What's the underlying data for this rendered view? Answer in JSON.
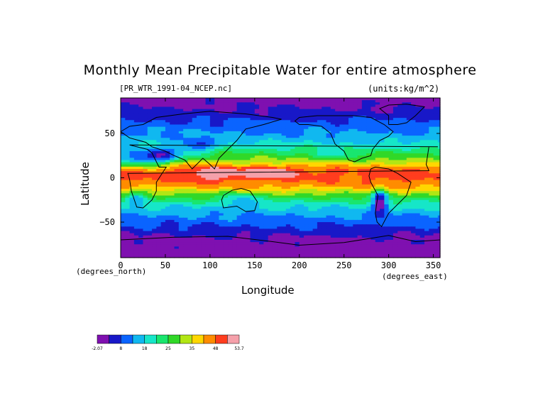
{
  "chart_data": {
    "type": "heatmap",
    "title": "Monthly Mean Precipitable Water for entire atmosphere",
    "subtitle": "[PR_WTR_1991-04_NCEP.nc]",
    "units_label": "(units:kg/m^2)",
    "xlabel": "Longitude",
    "ylabel": "Latitude",
    "x_unit_label": "(degrees_north)",
    "y_unit_label": "(degrees_east)",
    "xlim": [
      0,
      357.5
    ],
    "ylim": [
      -90,
      90
    ],
    "x_ticks": [
      "0",
      "50",
      "100",
      "150",
      "200",
      "250",
      "300",
      "350"
    ],
    "y_ticks": [
      "50",
      "0",
      "-50"
    ],
    "colorbar": {
      "labels": [
        "-2.07",
        "8",
        "18",
        "25",
        "35",
        "48",
        "53.7"
      ],
      "colors": [
        "#7f10b0",
        "#1818c8",
        "#0a64ff",
        "#10b8f0",
        "#16e6c8",
        "#19e66e",
        "#31d828",
        "#b2e614",
        "#ffd700",
        "#ff8c00",
        "#ff3d1e",
        "#f5a0aa"
      ]
    },
    "bands": [
      {
        "lat": 90,
        "value": 0
      },
      {
        "lat": 80,
        "value": 2
      },
      {
        "lat": 70,
        "value": 5
      },
      {
        "lat": 60,
        "value": 9
      },
      {
        "lat": 50,
        "value": 12
      },
      {
        "lat": 40,
        "value": 16
      },
      {
        "lat": 30,
        "value": 24
      },
      {
        "lat": 20,
        "value": 31
      },
      {
        "lat": 10,
        "value": 44
      },
      {
        "lat": 5,
        "value": 46
      },
      {
        "lat": 0,
        "value": 45
      },
      {
        "lat": -10,
        "value": 41
      },
      {
        "lat": -20,
        "value": 28
      },
      {
        "lat": -30,
        "value": 19
      },
      {
        "lat": -40,
        "value": 13
      },
      {
        "lat": -50,
        "value": 9
      },
      {
        "lat": -60,
        "value": 5
      },
      {
        "lat": -70,
        "value": 1
      },
      {
        "lat": -80,
        "value": 0
      },
      {
        "lat": -90,
        "value": 0
      }
    ],
    "anomalies": [
      {
        "lon": 170,
        "lat": 6,
        "rlon": 25,
        "rlat": 6,
        "delta": 10
      },
      {
        "lon": 105,
        "lat": 5,
        "rlon": 30,
        "rlat": 8,
        "delta": 9
      },
      {
        "lon": 300,
        "lat": -5,
        "rlon": 20,
        "rlat": 10,
        "delta": 3
      },
      {
        "lon": 290,
        "lat": -25,
        "rlon": 8,
        "rlat": 15,
        "delta": -22
      },
      {
        "lon": 20,
        "lat": 22,
        "rlon": 30,
        "rlat": 10,
        "delta": -20
      },
      {
        "lon": 50,
        "lat": 25,
        "rlon": 20,
        "rlat": 8,
        "delta": -16
      },
      {
        "lon": 240,
        "lat": 27,
        "rlon": 20,
        "rlat": 6,
        "delta": -8
      },
      {
        "lon": 18,
        "lat": -22,
        "rlon": 10,
        "rlat": 8,
        "delta": -10
      },
      {
        "lon": 135,
        "lat": -25,
        "rlon": 18,
        "rlat": 8,
        "delta": -10
      },
      {
        "lon": 85,
        "lat": 35,
        "rlon": 20,
        "rlat": 8,
        "delta": -12
      }
    ]
  }
}
